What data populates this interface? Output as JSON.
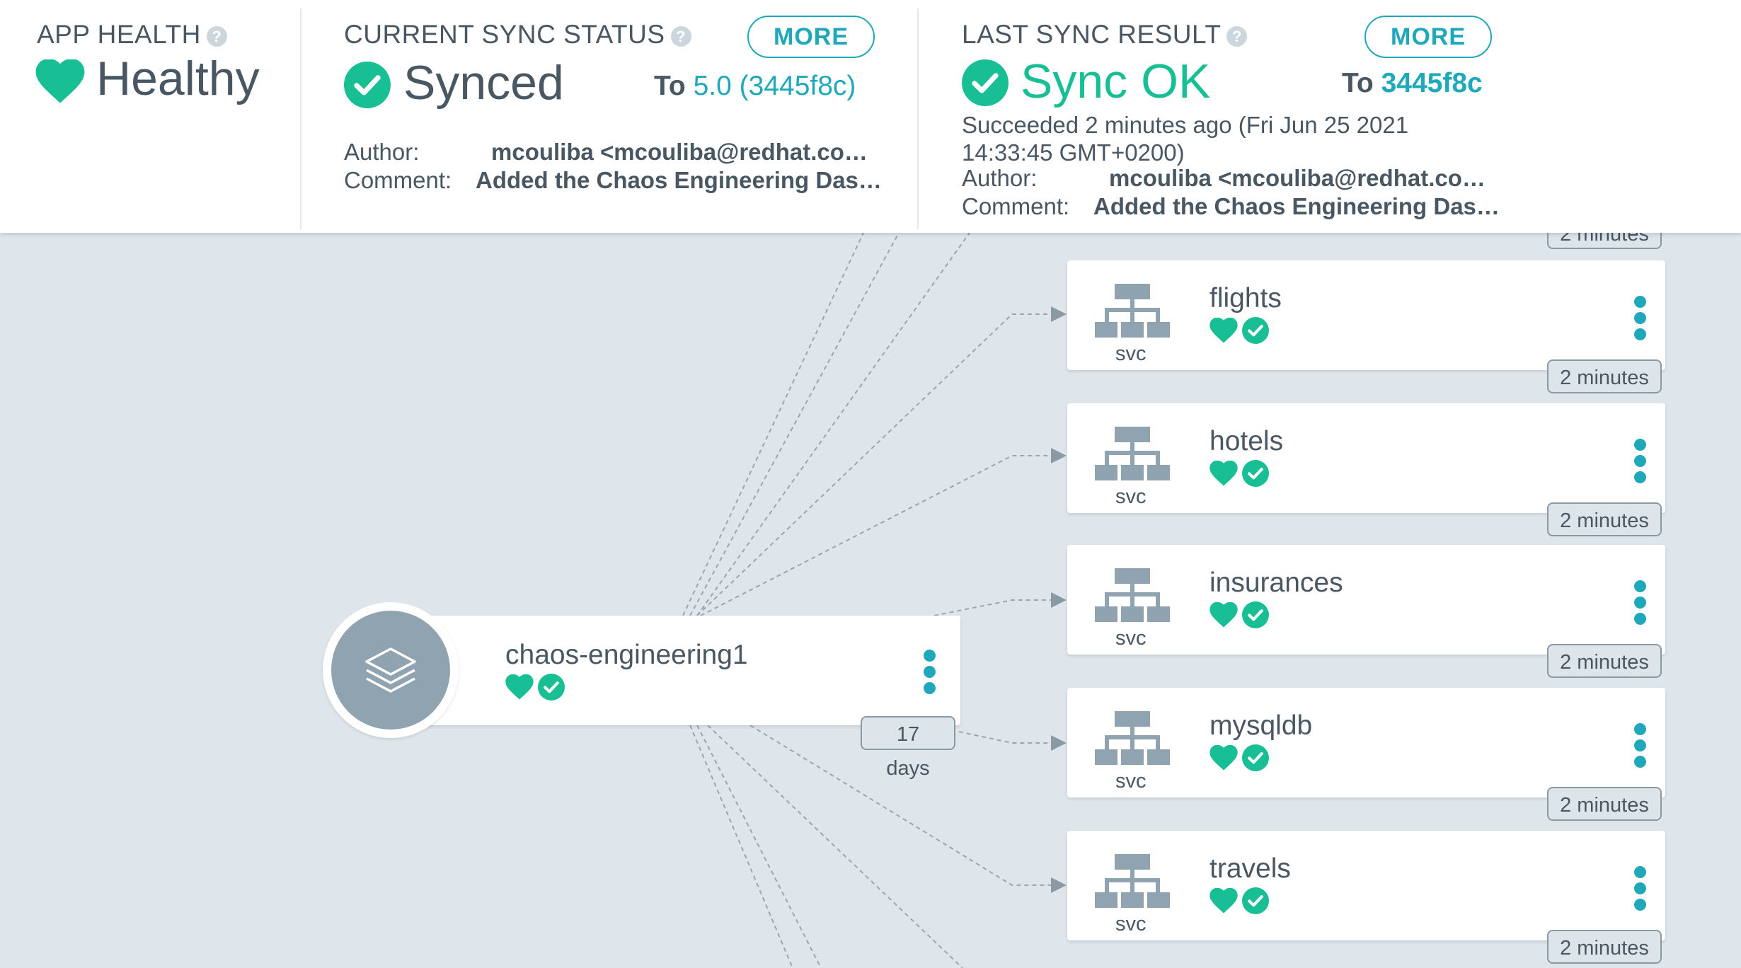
{
  "header": {
    "app_health": {
      "label": "APP HEALTH",
      "status": "Healthy"
    },
    "current_sync": {
      "label": "CURRENT SYNC STATUS",
      "status": "Synced",
      "more": "MORE",
      "to_prefix": "To",
      "revision": "5.0 (3445f8c)",
      "author_label": "Author:",
      "author": "mcouliba <mcouliba@redhat.com> -",
      "comment_label": "Comment:",
      "comment": "Added the Chaos Engineering Dash..."
    },
    "last_sync": {
      "label": "LAST SYNC RESULT",
      "status": "Sync OK",
      "more": "MORE",
      "to_prefix": "To",
      "revision": "3445f8c",
      "succeeded_line1": "Succeeded 2 minutes ago (Fri Jun 25 2021",
      "succeeded_line2": "14:33:45 GMT+0200)",
      "author_label": "Author:",
      "author": "mcouliba <mcouliba@redhat.com> -",
      "comment_label": "Comment:",
      "comment": "Added the Chaos Engineering Dash..."
    }
  },
  "app_node": {
    "name": "chaos-engineering1",
    "age": "17 days"
  },
  "top_partial_age": "2 minutes",
  "services": [
    {
      "name": "flights",
      "kind": "svc",
      "age": "2 minutes"
    },
    {
      "name": "hotels",
      "kind": "svc",
      "age": "2 minutes"
    },
    {
      "name": "insurances",
      "kind": "svc",
      "age": "2 minutes"
    },
    {
      "name": "mysqldb",
      "kind": "svc",
      "age": "2 minutes"
    },
    {
      "name": "travels",
      "kind": "svc",
      "age": "2 minutes"
    }
  ],
  "colors": {
    "healthy": "#18be94",
    "accent": "#1ea8b9",
    "icon_gray": "#8fa4b0"
  },
  "icons": {
    "health": "heart-icon",
    "sync": "check-circle-icon",
    "service": "network-tree-icon",
    "app": "layers-icon",
    "menu": "kebab-menu-icon"
  }
}
